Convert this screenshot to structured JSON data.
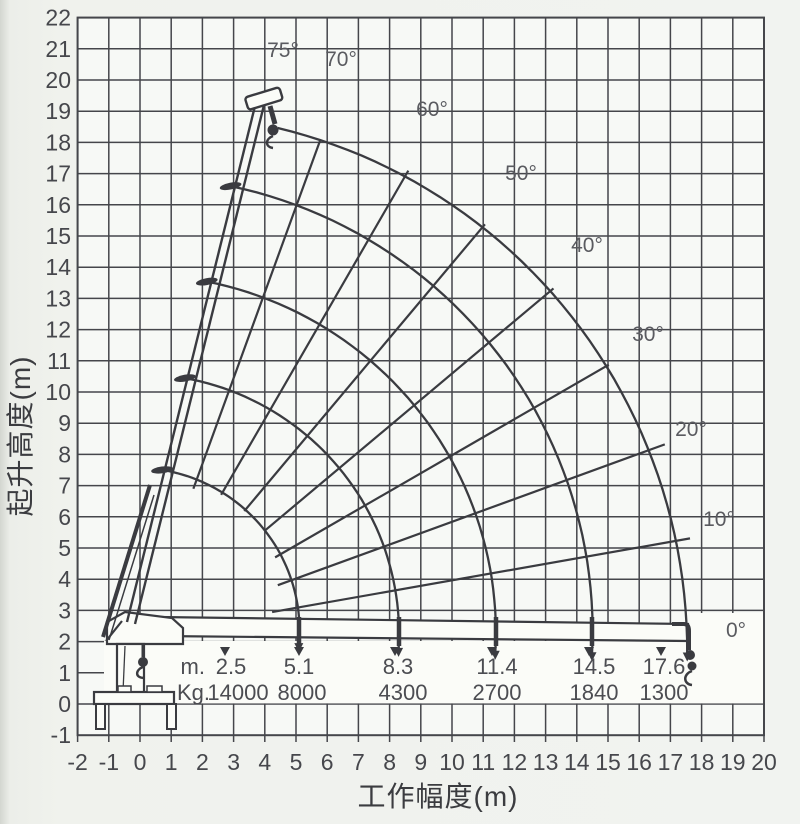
{
  "chart_data": {
    "type": "line",
    "title": "",
    "xlabel": "工作幅度(m)",
    "ylabel": "起升高度(m)",
    "xlim": [
      -2,
      20
    ],
    "ylim": [
      -1,
      22
    ],
    "grid": true,
    "x_tick_labels": [
      "-2",
      "-1",
      "0",
      "1",
      "2",
      "3",
      "4",
      "5",
      "6",
      "7",
      "8",
      "9",
      "10",
      "11",
      "12",
      "13",
      "14",
      "15",
      "16",
      "17",
      "18",
      "19",
      "20"
    ],
    "y_tick_labels": [
      "-1",
      "0",
      "1",
      "2",
      "3",
      "4",
      "5",
      "6",
      "7",
      "8",
      "9",
      "10",
      "11",
      "12",
      "13",
      "14",
      "15",
      "16",
      "17",
      "18",
      "19",
      "20",
      "21",
      "22"
    ],
    "angle_labels": [
      "75°",
      "70°",
      "60°",
      "50°",
      "40°",
      "30°",
      "20°",
      "10°",
      "0°"
    ],
    "boom_angles_deg": [
      75,
      70,
      60,
      50,
      40,
      30,
      20,
      10,
      0
    ],
    "load_table": {
      "radius_row_label": "m.",
      "capacity_row_label": "Kg.",
      "radius_m": [
        "2.5",
        "5.1",
        "8.3",
        "11.4",
        "14.5",
        "17.6"
      ],
      "capacity_kg": [
        "14000",
        "8000",
        "4300",
        "2700",
        "1840",
        "1300"
      ]
    },
    "boom_extension_arc_radii_m": [
      5.1,
      8.3,
      11.4,
      14.5,
      17.6
    ],
    "ink_color": "#3a3b40",
    "grid_color": "#45464b",
    "tick_color": "#46474c",
    "label_color": "#5a5b60"
  }
}
